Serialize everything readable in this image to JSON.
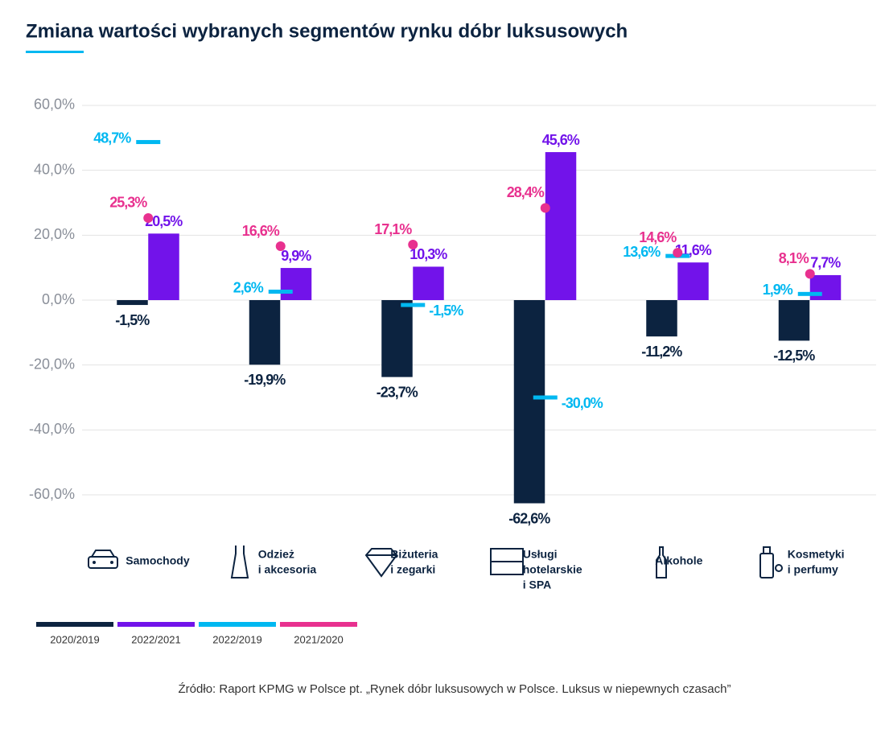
{
  "chart_data": {
    "type": "bar",
    "title": "Zmiana wartości wybranych segmentów rynku dóbr luksusowych",
    "source": "Źródło: Raport KPMG w Polsce pt. „Rynek dóbr luksusowych w Polsce. Luksus w niepewnych czasach”",
    "categories": [
      [
        "Samochody"
      ],
      [
        "Odzież",
        "i akcesoria"
      ],
      [
        "Biżuteria",
        "i zegarki"
      ],
      [
        "Usługi",
        "hotelarskie",
        " i SPA"
      ],
      [
        "Alkohole"
      ],
      [
        "Kosmetyki",
        "i perfumy"
      ]
    ],
    "series": [
      {
        "name": "2020/2019",
        "color": "#0c2340",
        "mark": "bar",
        "values": [
          -1.5,
          -19.9,
          -23.7,
          -62.6,
          -11.2,
          -12.5
        ],
        "value_labels": [
          "-1,5%",
          "-19,9%",
          "-23,7%",
          "-62,6%",
          "-11,2%",
          "-12,5%"
        ]
      },
      {
        "name": "2022/2021",
        "color": "#7213ea",
        "mark": "bar",
        "values": [
          20.5,
          9.9,
          10.3,
          45.6,
          11.6,
          7.7
        ],
        "value_labels": [
          "20,5%",
          "9,9%",
          "10,3%",
          "45,6%",
          "11,6%",
          "7,7%"
        ]
      },
      {
        "name": "2022/2019",
        "color": "#00b8f1",
        "mark": "dash",
        "values": [
          48.7,
          2.6,
          -1.5,
          -30.0,
          13.6,
          1.9
        ],
        "value_labels": [
          "48,7%",
          "2,6%",
          "-1,5%",
          "-30,0%",
          "13,6%",
          "1,9%"
        ]
      },
      {
        "name": "2021/2020",
        "color": "#e8318f",
        "mark": "dot",
        "values": [
          25.3,
          16.6,
          17.1,
          28.4,
          14.6,
          8.1
        ],
        "value_labels": [
          "25,3%",
          "16,6%",
          "17,1%",
          "28,4%",
          "14,6%",
          "8,1%"
        ]
      }
    ],
    "ylim": [
      -65,
      65
    ],
    "yticks": [
      {
        "value": -60,
        "label": "-60,0%"
      },
      {
        "value": -40,
        "label": "-40,0%"
      },
      {
        "value": -20,
        "label": "-20,0%"
      },
      {
        "value": 0,
        "label": "0,0%"
      },
      {
        "value": 20,
        "label": "20,0%"
      },
      {
        "value": 40,
        "label": "40,0%"
      },
      {
        "value": 60,
        "label": "60,0%"
      }
    ],
    "grid": true
  }
}
